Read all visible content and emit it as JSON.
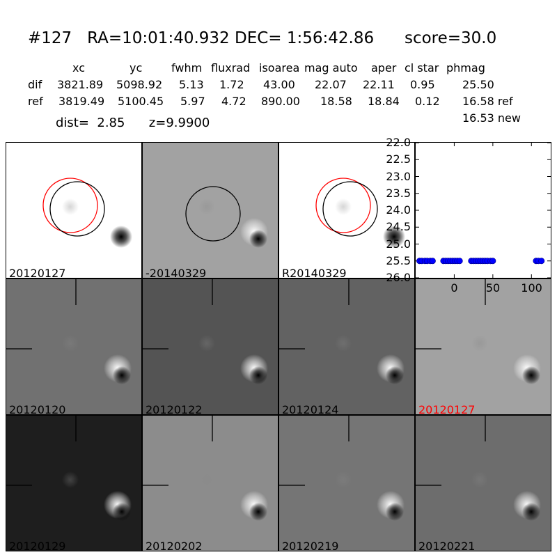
{
  "title": "#127   RA=10:01:40.932 DEC= 1:56:42.86      score=30.0",
  "header": [
    "xc",
    "yc",
    "fwhm",
    "fluxrad",
    "isoarea",
    "mag auto",
    "aper",
    "cl star",
    "phmag"
  ],
  "rows": [
    {
      "label": "dif",
      "values": [
        "3821.89",
        "5098.92",
        "5.13",
        "1.72",
        "43.00",
        "22.07",
        "22.11",
        "0.95",
        "25.50"
      ],
      "suffix": ""
    },
    {
      "label": "ref",
      "values": [
        "3819.49",
        "5100.45",
        "5.97",
        "4.72",
        "890.00",
        "18.58",
        "18.84",
        "0.12",
        "16.58"
      ],
      "suffix": " ref"
    }
  ],
  "new_mag": "16.53 new",
  "dist_line": "dist=  2.85      z=9.9900",
  "stamps": [
    {
      "label": "20120127",
      "bg": "#ffffff",
      "circles": [
        "red",
        "black"
      ],
      "crosshair": false
    },
    {
      "label": "-20140329",
      "bg": "#a2a2a2",
      "circles": [
        "black"
      ],
      "crosshair": false
    },
    {
      "label": "R20140329",
      "bg": "#ffffff",
      "circles": [
        "red",
        "black"
      ],
      "crosshair": false
    },
    {
      "label": "20120120",
      "bg": "#717171",
      "crosshair": true
    },
    {
      "label": "20120122",
      "bg": "#545454",
      "crosshair": true
    },
    {
      "label": "20120124",
      "bg": "#626262",
      "crosshair": true
    },
    {
      "label": "20120127",
      "bg": "#a2a2a2",
      "crosshair": true,
      "label_color": "#ff0000"
    },
    {
      "label": "20120129",
      "bg": "#1e1e1e",
      "crosshair": true
    },
    {
      "label": "20120202",
      "bg": "#8c8c8c",
      "crosshair": true
    },
    {
      "label": "20120219",
      "bg": "#757575",
      "crosshair": true
    },
    {
      "label": "20120221",
      "bg": "#6d6d6d",
      "crosshair": true
    }
  ],
  "chart_data": {
    "type": "scatter",
    "title": "",
    "xlabel": "",
    "ylabel": "",
    "xlim": [
      -50,
      125
    ],
    "ylim": [
      26.0,
      22.0
    ],
    "y_inverted": true,
    "xticks": [
      "0",
      "50",
      "100"
    ],
    "yticks": [
      "22.0",
      "22.5",
      "23.0",
      "23.5",
      "24.0",
      "24.5",
      "25.0",
      "25.5",
      "26.0"
    ],
    "marker_color": "#0000ff",
    "x": [
      -45,
      -42,
      -38,
      -35,
      -31,
      -28,
      -14,
      -11,
      -8,
      -5,
      -2,
      1,
      4,
      7,
      22,
      25,
      28,
      31,
      34,
      37,
      40,
      43,
      47,
      50,
      106,
      109,
      113
    ],
    "y": [
      25.5,
      25.5,
      25.5,
      25.5,
      25.5,
      25.5,
      25.5,
      25.5,
      25.5,
      25.5,
      25.5,
      25.5,
      25.5,
      25.5,
      25.5,
      25.5,
      25.5,
      25.5,
      25.5,
      25.5,
      25.5,
      25.5,
      25.5,
      25.5,
      25.5,
      25.5,
      25.5
    ]
  }
}
